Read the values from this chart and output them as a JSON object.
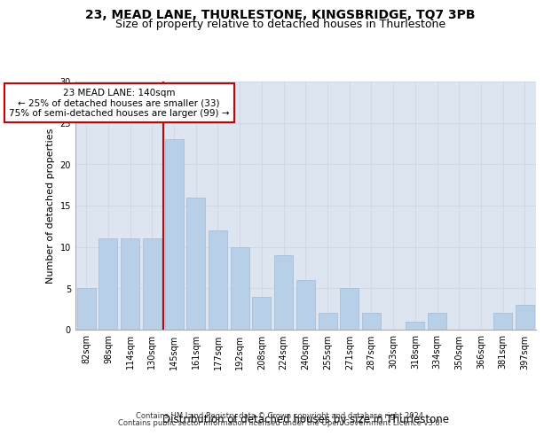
{
  "title": "23, MEAD LANE, THURLESTONE, KINGSBRIDGE, TQ7 3PB",
  "subtitle": "Size of property relative to detached houses in Thurlestone",
  "xlabel": "Distribution of detached houses by size in Thurlestone",
  "ylabel": "Number of detached properties",
  "categories": [
    "82sqm",
    "98sqm",
    "114sqm",
    "130sqm",
    "145sqm",
    "161sqm",
    "177sqm",
    "192sqm",
    "208sqm",
    "224sqm",
    "240sqm",
    "255sqm",
    "271sqm",
    "287sqm",
    "303sqm",
    "318sqm",
    "334sqm",
    "350sqm",
    "366sqm",
    "381sqm",
    "397sqm"
  ],
  "values": [
    5,
    11,
    11,
    11,
    23,
    16,
    12,
    10,
    4,
    9,
    6,
    2,
    5,
    2,
    0,
    1,
    2,
    0,
    0,
    2,
    3
  ],
  "bar_color": "#b8cfe8",
  "bar_edge_color": "#a0b8d8",
  "vline_index": 4,
  "vline_color": "#cc0000",
  "annotation_text": "23 MEAD LANE: 140sqm\n← 25% of detached houses are smaller (33)\n75% of semi-detached houses are larger (99) →",
  "annotation_box_facecolor": "#ffffff",
  "annotation_box_edgecolor": "#cc0000",
  "ylim": [
    0,
    30
  ],
  "yticks": [
    0,
    5,
    10,
    15,
    20,
    25,
    30
  ],
  "grid_color": "#d0d8e8",
  "background_color": "#dde5f0",
  "footer_line1": "Contains HM Land Registry data © Crown copyright and database right 2024.",
  "footer_line2": "Contains public sector information licensed under the Open Government Licence v3.0.",
  "title_fontsize": 10,
  "subtitle_fontsize": 9,
  "xlabel_fontsize": 8.5,
  "ylabel_fontsize": 8,
  "tick_fontsize": 7,
  "annotation_fontsize": 7.5,
  "footer_fontsize": 6
}
